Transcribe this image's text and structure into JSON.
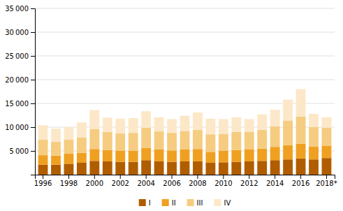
{
  "chart_data": {
    "type": "bar",
    "stacked": true,
    "grid": true,
    "legend": "bottom",
    "categories": [
      "1996",
      null,
      "1998",
      null,
      "2000",
      null,
      "2002",
      null,
      "2004",
      null,
      "2006",
      null,
      "2008",
      null,
      "2010",
      null,
      "2012",
      null,
      "2014",
      null,
      "2016",
      null,
      "2018*"
    ],
    "series": [
      {
        "name": "I",
        "color": "#b05d00",
        "values": [
          2100,
          2100,
          2300,
          2500,
          2900,
          2800,
          2700,
          2700,
          3050,
          2800,
          2700,
          2800,
          2800,
          2500,
          2600,
          2700,
          2800,
          2900,
          3050,
          3200,
          3400,
          3200,
          3500
        ]
      },
      {
        "name": "II",
        "color": "#f0a020",
        "values": [
          2000,
          1900,
          2100,
          2100,
          2500,
          2400,
          2300,
          2300,
          2600,
          2500,
          2400,
          2500,
          2600,
          2300,
          2400,
          2500,
          2500,
          2600,
          2800,
          3000,
          3100,
          2700,
          2600
        ]
      },
      {
        "name": "III",
        "color": "#f5cc80",
        "values": [
          3300,
          2900,
          3000,
          3200,
          4200,
          3800,
          3700,
          3800,
          4200,
          3800,
          3700,
          3900,
          4000,
          3700,
          3600,
          3800,
          3700,
          3900,
          4300,
          5200,
          5700,
          4100,
          3800
        ]
      },
      {
        "name": "IV",
        "color": "#fce8c8",
        "values": [
          3000,
          2800,
          2600,
          3200,
          4000,
          3000,
          3100,
          3100,
          3500,
          3000,
          2900,
          3200,
          3700,
          3300,
          3100,
          3100,
          2700,
          3300,
          3500,
          4400,
          5800,
          2800,
          2200
        ]
      }
    ],
    "ylim": [
      0,
      35000
    ],
    "yticks": [
      {
        "value": 5000,
        "label": "5 000"
      },
      {
        "value": 10000,
        "label": "10 000"
      },
      {
        "value": 15000,
        "label": "15 000"
      },
      {
        "value": 20000,
        "label": "20 000"
      },
      {
        "value": 25000,
        "label": "25 000"
      },
      {
        "value": 30000,
        "label": "30 000"
      },
      {
        "value": 35000,
        "label": "35 000"
      }
    ]
  }
}
